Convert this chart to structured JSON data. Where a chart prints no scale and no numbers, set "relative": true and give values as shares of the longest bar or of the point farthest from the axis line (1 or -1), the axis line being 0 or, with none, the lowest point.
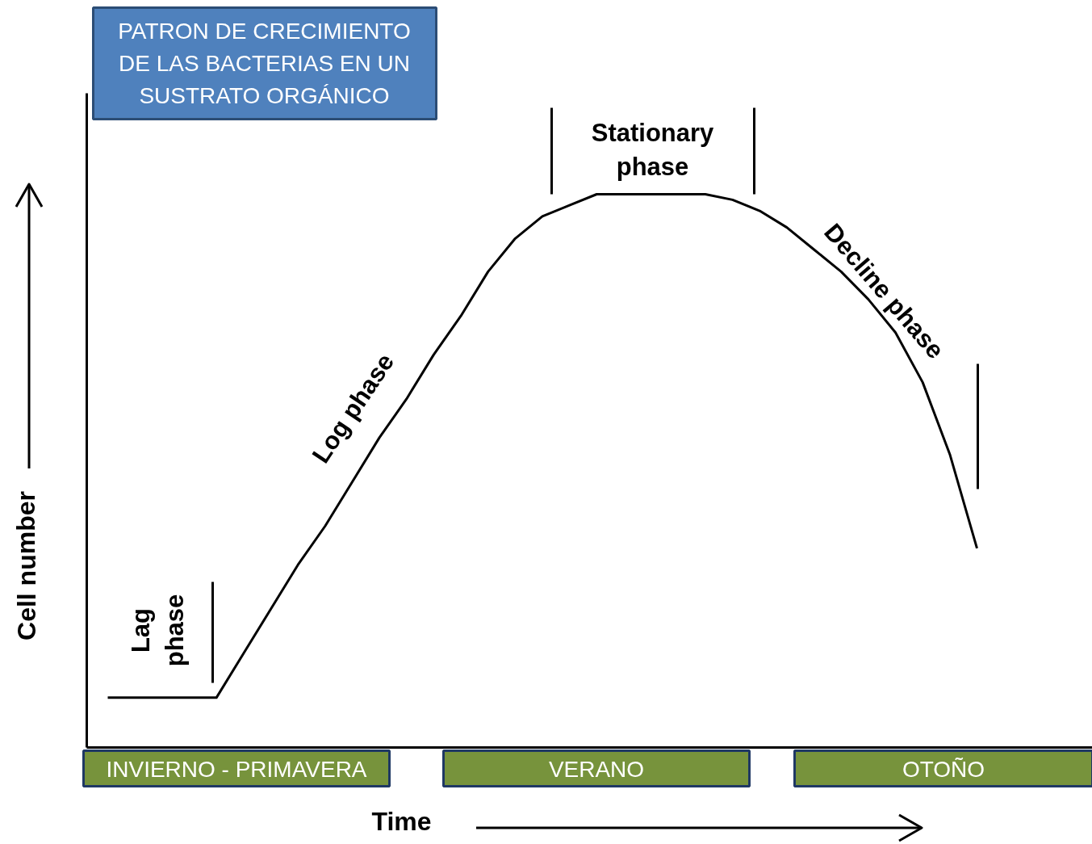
{
  "chart_data": {
    "type": "line",
    "relative": true,
    "title": "PATRON DE CRECIMIENTO DE LAS BACTERIAS EN UN SUSTRATO ORGÁNICO",
    "xlabel": "Time",
    "ylabel": "Cell number",
    "categories": [
      null,
      null,
      null,
      null,
      null,
      null,
      null,
      null,
      null,
      null,
      null,
      null,
      null,
      null,
      null,
      null,
      null,
      null,
      null,
      null,
      null,
      null,
      null,
      null,
      null,
      null,
      null,
      null,
      null,
      null,
      null,
      null,
      null
    ],
    "series": [
      {
        "color": "#000000",
        "values": [
          0.09,
          0.09,
          0.09,
          0.09,
          0.09,
          0.17,
          0.25,
          0.33,
          0.4,
          0.48,
          0.56,
          0.63,
          0.71,
          0.78,
          0.86,
          0.92,
          0.96,
          0.98,
          1.0,
          1.0,
          1.0,
          1.0,
          1.0,
          0.99,
          0.97,
          0.94,
          0.9,
          0.86,
          0.81,
          0.75,
          0.66,
          0.53,
          0.36
        ]
      }
    ],
    "annotations": [
      "Lag phase",
      "Log phase",
      "Stationary phase",
      "Decline phase",
      "INVIERNO - PRIMAVERA",
      "VERANO",
      "OTOÑO"
    ]
  }
}
